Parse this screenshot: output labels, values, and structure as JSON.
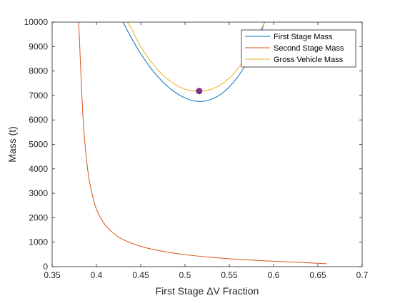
{
  "chart_data": {
    "type": "line",
    "title": "",
    "xlabel": "First Stage ΔV Fraction",
    "ylabel": "Mass (t)",
    "xlim": [
      0.35,
      0.7
    ],
    "ylim": [
      0,
      10000
    ],
    "xticks": [
      0.35,
      0.4,
      0.45,
      0.5,
      0.55,
      0.6,
      0.65,
      0.7
    ],
    "xtick_labels": [
      "0.35",
      "0.4",
      "0.45",
      "0.5",
      "0.55",
      "0.6",
      "0.65",
      "0.7"
    ],
    "yticks": [
      0,
      1000,
      2000,
      3000,
      4000,
      5000,
      6000,
      7000,
      8000,
      9000,
      10000
    ],
    "ytick_labels": [
      "0",
      "1000",
      "2000",
      "3000",
      "4000",
      "5000",
      "6000",
      "7000",
      "8000",
      "9000",
      "10000"
    ],
    "grid": false,
    "legend_position": "top-right",
    "series": [
      {
        "name": "First Stage Mass",
        "color": "#0072BD",
        "x": [
          0.43,
          0.44,
          0.45,
          0.46,
          0.47,
          0.48,
          0.49,
          0.5,
          0.51,
          0.52,
          0.53,
          0.54,
          0.55,
          0.56,
          0.57,
          0.58,
          0.59
        ],
        "y": [
          10000,
          9320,
          8710,
          8180,
          7740,
          7380,
          7100,
          6900,
          6780,
          6760,
          6850,
          7040,
          7350,
          7780,
          8340,
          9050,
          10000
        ]
      },
      {
        "name": "Second Stage Mass",
        "color": "#D95319",
        "x": [
          0.38,
          0.385,
          0.39,
          0.395,
          0.4,
          0.41,
          0.42,
          0.43,
          0.45,
          0.47,
          0.5,
          0.53,
          0.56,
          0.6,
          0.63,
          0.66
        ],
        "y": [
          10000,
          6000,
          4000,
          3000,
          2350,
          1700,
          1350,
          1110,
          830,
          660,
          490,
          380,
          300,
          220,
          170,
          120
        ]
      },
      {
        "name": "Gross Vehicle Mass",
        "color": "#EDB120",
        "x": [
          0.435,
          0.44,
          0.45,
          0.46,
          0.47,
          0.48,
          0.49,
          0.5,
          0.51,
          0.52,
          0.53,
          0.54,
          0.55,
          0.56,
          0.57,
          0.58,
          0.59
        ],
        "y": [
          10000,
          9700,
          9000,
          8460,
          8020,
          7680,
          7420,
          7260,
          7180,
          7180,
          7260,
          7430,
          7710,
          8110,
          8620,
          9260,
          10000
        ]
      }
    ],
    "marker": {
      "x": 0.516,
      "y": 7180,
      "color": "#7E2F8E"
    }
  }
}
